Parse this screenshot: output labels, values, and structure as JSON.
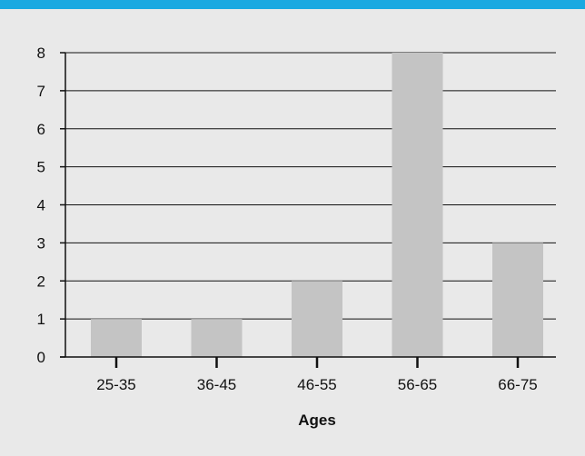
{
  "colors": {
    "accent_bar": "#1aa9e1",
    "background": "#e9e9e9",
    "bar_fill": "#c4c4c4",
    "axis_line": "#111111"
  },
  "chart_data": {
    "type": "bar",
    "categories": [
      "25-35",
      "36-45",
      "46-55",
      "56-65",
      "66-75"
    ],
    "values": [
      1,
      1,
      2,
      8,
      3
    ],
    "title": "",
    "xlabel": "Ages",
    "ylabel": "",
    "ylim": [
      0,
      8
    ],
    "yticks": [
      0,
      1,
      2,
      3,
      4,
      5,
      6,
      7,
      8
    ],
    "grid": true,
    "legend": "none"
  }
}
